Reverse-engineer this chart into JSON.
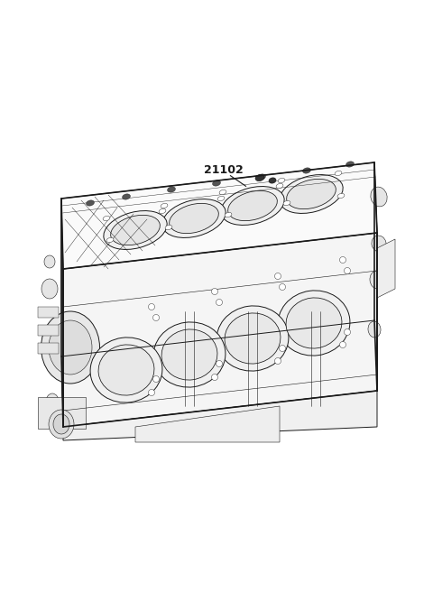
{
  "background_color": "#ffffff",
  "line_color": "#1a1a1a",
  "label_text": "21102",
  "fig_width": 4.8,
  "fig_height": 6.56,
  "dpi": 100,
  "lw_outer": 1.2,
  "lw_main": 0.7,
  "lw_thin": 0.4,
  "lw_detail": 0.3,
  "face_color": "#ffffff",
  "shade1": "#f5f5f5",
  "shade2": "#efefef",
  "shade3": "#e8e8e8"
}
